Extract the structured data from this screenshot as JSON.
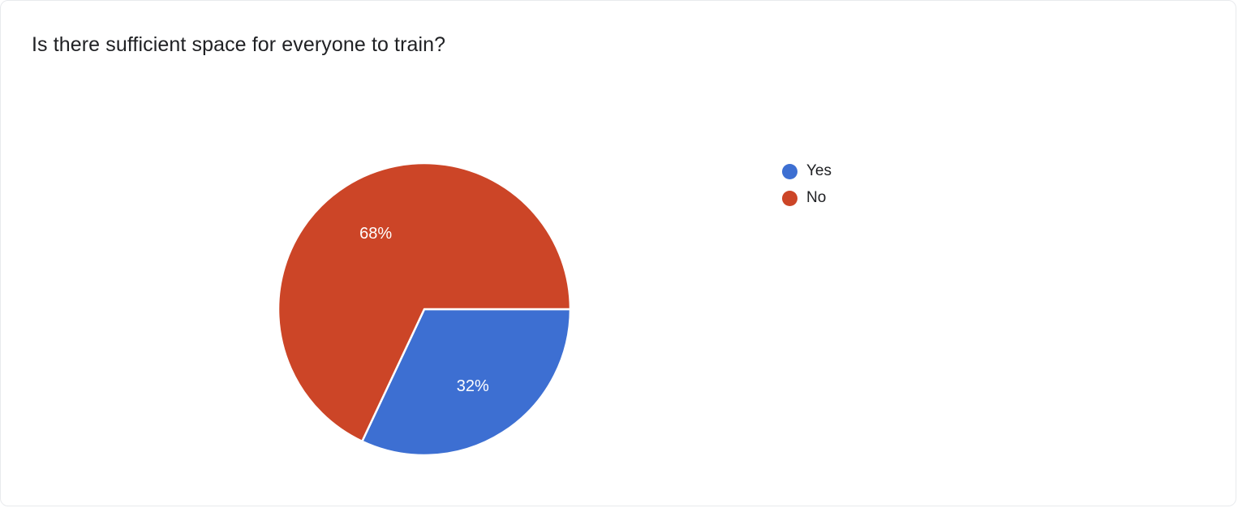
{
  "question": {
    "title": "Is there sufficient space for everyone to train?"
  },
  "chart_data": {
    "type": "pie",
    "title": "Is there sufficient space for everyone to train?",
    "categories": [
      "Yes",
      "No"
    ],
    "values": [
      32,
      68
    ],
    "labels": [
      "32%",
      "68%"
    ],
    "colors": [
      "#3d6fd2",
      "#cc4527"
    ],
    "start_angle_deg": 0,
    "direction": "clockwise",
    "legend_position": "right",
    "slice_border_color": "#ffffff",
    "label_color": "#ffffff"
  }
}
